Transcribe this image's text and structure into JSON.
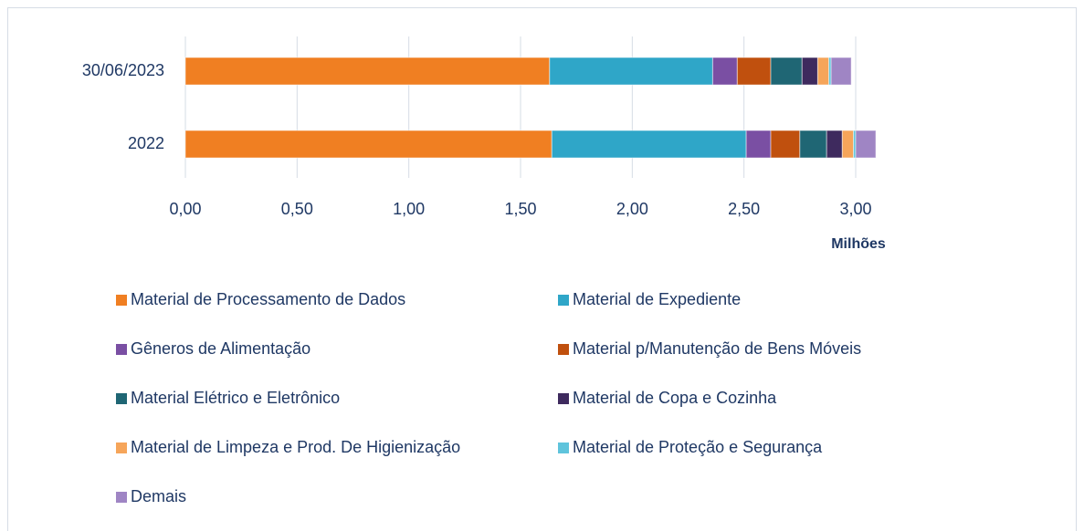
{
  "chart_data": {
    "type": "stacked-barh",
    "categories": [
      "30/06/2023",
      "2022"
    ],
    "series": [
      {
        "name": "Material de Processamento de Dados",
        "color": "#f07f22",
        "values": [
          1.63,
          1.64
        ]
      },
      {
        "name": "Material de Expediente",
        "color": "#2fa6c8",
        "values": [
          0.73,
          0.87
        ]
      },
      {
        "name": "Gêneros de Alimentação",
        "color": "#7a4fa3",
        "values": [
          0.11,
          0.11
        ]
      },
      {
        "name": "Material p/Manutenção de Bens Móveis",
        "color": "#c0500e",
        "values": [
          0.15,
          0.13
        ]
      },
      {
        "name": "Material Elétrico e Eletrônico",
        "color": "#1f6674",
        "values": [
          0.14,
          0.12
        ]
      },
      {
        "name": "Material de Copa e Cozinha",
        "color": "#3e2a5e",
        "values": [
          0.07,
          0.07
        ]
      },
      {
        "name": "Material de Limpeza e Prod. De Higienização",
        "color": "#f6a55a",
        "values": [
          0.05,
          0.05
        ]
      },
      {
        "name": "Material de Proteção e Segurança",
        "color": "#5fc4dc",
        "values": [
          0.01,
          0.01
        ]
      },
      {
        "name": "Demais",
        "color": "#9f85c4",
        "values": [
          0.09,
          0.09
        ]
      }
    ],
    "xlabel": "Milhões",
    "xlim": [
      0,
      3.2
    ],
    "xticks": [
      {
        "value": 0,
        "label": "0,00"
      },
      {
        "value": 0.5,
        "label": "0,50"
      },
      {
        "value": 1,
        "label": "1,00"
      },
      {
        "value": 1.5,
        "label": "1,50"
      },
      {
        "value": 2,
        "label": "2,00"
      },
      {
        "value": 2.5,
        "label": "2,50"
      },
      {
        "value": 3,
        "label": "3,00"
      }
    ],
    "grid": true,
    "legend": "bottom"
  }
}
